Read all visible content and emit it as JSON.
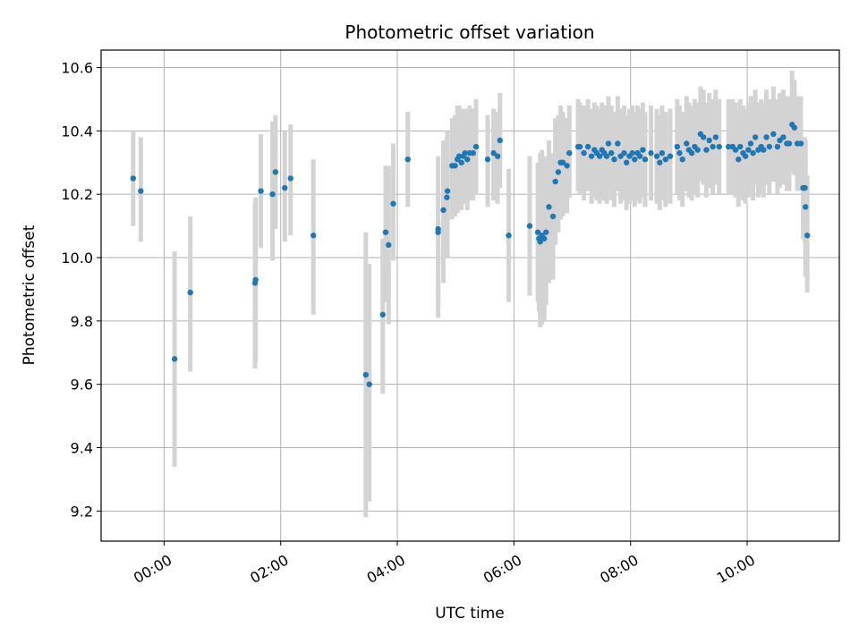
{
  "chart_data": {
    "type": "scatter",
    "title": "Photometric offset variation",
    "xlabel": "UTC time",
    "ylabel": "Photometric offset",
    "xlim_hours": [
      -1.08,
      11.58
    ],
    "ylim": [
      9.105,
      10.655
    ],
    "x_ticks": [
      {
        "label": "00:00",
        "hour": 0
      },
      {
        "label": "02:00",
        "hour": 2
      },
      {
        "label": "04:00",
        "hour": 4
      },
      {
        "label": "06:00",
        "hour": 6
      },
      {
        "label": "08:00",
        "hour": 8
      },
      {
        "label": "10:00",
        "hour": 10
      }
    ],
    "y_ticks": [
      {
        "label": "9.2",
        "value": 9.2
      },
      {
        "label": "9.4",
        "value": 9.4
      },
      {
        "label": "9.6",
        "value": 9.6
      },
      {
        "label": "9.8",
        "value": 9.8
      },
      {
        "label": "10.0",
        "value": 10.0
      },
      {
        "label": "10.2",
        "value": 10.2
      },
      {
        "label": "10.4",
        "value": 10.4
      },
      {
        "label": "10.6",
        "value": 10.6
      }
    ],
    "grid": true,
    "colors": {
      "points": "#1f77b4",
      "errorbars": "#d3d3d3",
      "grid": "#b0b0b0"
    },
    "points": [
      [
        -0.53,
        10.25,
        10.1,
        10.4
      ],
      [
        -0.4,
        10.21,
        10.05,
        10.38
      ],
      [
        0.18,
        9.68,
        9.34,
        10.02
      ],
      [
        0.45,
        9.89,
        9.64,
        10.13
      ],
      [
        1.57,
        9.93,
        9.67,
        10.19
      ],
      [
        1.56,
        9.92,
        9.65,
        10.17
      ],
      [
        1.66,
        10.21,
        10.03,
        10.39
      ],
      [
        1.86,
        10.2,
        9.99,
        10.43
      ],
      [
        1.91,
        10.27,
        10.09,
        10.45
      ],
      [
        2.07,
        10.22,
        10.05,
        10.4
      ],
      [
        2.17,
        10.25,
        10.07,
        10.42
      ],
      [
        2.56,
        10.07,
        9.82,
        10.31
      ],
      [
        3.46,
        9.63,
        9.18,
        10.08
      ],
      [
        3.52,
        9.6,
        9.23,
        9.98
      ],
      [
        3.75,
        9.82,
        9.57,
        10.06
      ],
      [
        3.8,
        10.08,
        9.86,
        10.29
      ],
      [
        3.85,
        10.04,
        9.79,
        10.29
      ],
      [
        3.93,
        10.17,
        9.99,
        10.36
      ],
      [
        4.18,
        10.31,
        10.16,
        10.46
      ],
      [
        4.7,
        10.09,
        9.81,
        10.32
      ],
      [
        4.7,
        10.08,
        9.85,
        10.3
      ],
      [
        4.79,
        10.15,
        9.92,
        10.37
      ],
      [
        4.86,
        10.21,
        10.0,
        10.4
      ],
      [
        4.85,
        10.19,
        10.01,
        10.38
      ],
      [
        4.94,
        10.29,
        10.12,
        10.44
      ],
      [
        4.99,
        10.29,
        10.13,
        10.45
      ],
      [
        5.03,
        10.31,
        10.14,
        10.48
      ],
      [
        5.06,
        10.32,
        10.16,
        10.48
      ],
      [
        5.1,
        10.3,
        10.15,
        10.47
      ],
      [
        5.13,
        10.32,
        10.17,
        10.47
      ],
      [
        5.16,
        10.33,
        10.18,
        10.47
      ],
      [
        5.2,
        10.31,
        10.15,
        10.46
      ],
      [
        5.24,
        10.33,
        10.18,
        10.48
      ],
      [
        5.3,
        10.33,
        10.18,
        10.47
      ],
      [
        5.35,
        10.35,
        10.2,
        10.5
      ],
      [
        5.55,
        10.31,
        10.16,
        10.45
      ],
      [
        5.65,
        10.33,
        10.18,
        10.47
      ],
      [
        5.72,
        10.32,
        10.17,
        10.46
      ],
      [
        5.76,
        10.37,
        10.22,
        10.52
      ],
      [
        5.91,
        10.07,
        9.86,
        10.28
      ],
      [
        6.27,
        10.1,
        9.88,
        10.32
      ],
      [
        6.41,
        10.08,
        9.86,
        10.3
      ],
      [
        6.43,
        10.06,
        9.83,
        10.28
      ],
      [
        6.45,
        10.05,
        9.78,
        10.33
      ],
      [
        6.48,
        10.07,
        9.79,
        10.34
      ],
      [
        6.52,
        10.06,
        9.8,
        10.32
      ],
      [
        6.55,
        10.08,
        9.85,
        10.3
      ],
      [
        6.6,
        10.16,
        9.92,
        10.37
      ],
      [
        6.67,
        10.13,
        9.93,
        10.33
      ],
      [
        6.71,
        10.24,
        10.04,
        10.44
      ],
      [
        6.76,
        10.27,
        10.08,
        10.45
      ],
      [
        6.8,
        10.3,
        10.12,
        10.48
      ],
      [
        6.84,
        10.3,
        10.13,
        10.46
      ],
      [
        6.91,
        10.29,
        10.14,
        10.44
      ],
      [
        6.95,
        10.33,
        10.19,
        10.48
      ],
      [
        7.1,
        10.35,
        10.21,
        10.5
      ],
      [
        7.13,
        10.35,
        10.2,
        10.49
      ],
      [
        7.2,
        10.33,
        10.18,
        10.48
      ],
      [
        7.27,
        10.35,
        10.21,
        10.5
      ],
      [
        7.33,
        10.32,
        10.17,
        10.47
      ],
      [
        7.38,
        10.34,
        10.19,
        10.49
      ],
      [
        7.42,
        10.33,
        10.18,
        10.48
      ],
      [
        7.47,
        10.32,
        10.17,
        10.47
      ],
      [
        7.51,
        10.34,
        10.19,
        10.49
      ],
      [
        7.55,
        10.33,
        10.18,
        10.48
      ],
      [
        7.59,
        10.32,
        10.17,
        10.47
      ],
      [
        7.62,
        10.36,
        10.21,
        10.51
      ],
      [
        7.67,
        10.33,
        10.18,
        10.48
      ],
      [
        7.72,
        10.31,
        10.16,
        10.46
      ],
      [
        7.78,
        10.36,
        10.21,
        10.51
      ],
      [
        7.83,
        10.32,
        10.17,
        10.47
      ],
      [
        7.89,
        10.33,
        10.18,
        10.48
      ],
      [
        7.93,
        10.3,
        10.15,
        10.45
      ],
      [
        7.98,
        10.32,
        10.17,
        10.47
      ],
      [
        8.03,
        10.33,
        10.18,
        10.48
      ],
      [
        8.07,
        10.31,
        10.16,
        10.46
      ],
      [
        8.12,
        10.33,
        10.18,
        10.48
      ],
      [
        8.16,
        10.32,
        10.17,
        10.47
      ],
      [
        8.21,
        10.34,
        10.19,
        10.49
      ],
      [
        8.25,
        10.31,
        10.16,
        10.46
      ],
      [
        8.35,
        10.33,
        10.18,
        10.48
      ],
      [
        8.45,
        10.32,
        10.17,
        10.47
      ],
      [
        8.5,
        10.3,
        10.15,
        10.45
      ],
      [
        8.54,
        10.33,
        10.18,
        10.48
      ],
      [
        8.6,
        10.31,
        10.16,
        10.46
      ],
      [
        8.68,
        10.32,
        10.17,
        10.47
      ],
      [
        8.8,
        10.35,
        10.2,
        10.5
      ],
      [
        8.84,
        10.33,
        10.18,
        10.48
      ],
      [
        8.89,
        10.31,
        10.16,
        10.46
      ],
      [
        8.96,
        10.36,
        10.21,
        10.51
      ],
      [
        9.0,
        10.34,
        10.19,
        10.49
      ],
      [
        9.05,
        10.33,
        10.18,
        10.48
      ],
      [
        9.1,
        10.35,
        10.2,
        10.5
      ],
      [
        9.15,
        10.34,
        10.19,
        10.49
      ],
      [
        9.2,
        10.39,
        10.24,
        10.54
      ],
      [
        9.25,
        10.38,
        10.23,
        10.53
      ],
      [
        9.3,
        10.34,
        10.19,
        10.49
      ],
      [
        9.35,
        10.37,
        10.22,
        10.52
      ],
      [
        9.41,
        10.35,
        10.2,
        10.5
      ],
      [
        9.46,
        10.38,
        10.23,
        10.53
      ],
      [
        9.52,
        10.35,
        10.2,
        10.5
      ],
      [
        9.68,
        10.35,
        10.2,
        10.5
      ],
      [
        9.75,
        10.35,
        10.2,
        10.5
      ],
      [
        9.8,
        10.34,
        10.19,
        10.49
      ],
      [
        9.85,
        10.31,
        10.16,
        10.46
      ],
      [
        9.88,
        10.35,
        10.2,
        10.5
      ],
      [
        9.93,
        10.33,
        10.18,
        10.48
      ],
      [
        9.97,
        10.32,
        10.17,
        10.47
      ],
      [
        10.02,
        10.34,
        10.19,
        10.49
      ],
      [
        10.06,
        10.36,
        10.21,
        10.51
      ],
      [
        10.1,
        10.33,
        10.18,
        10.48
      ],
      [
        10.14,
        10.38,
        10.23,
        10.53
      ],
      [
        10.19,
        10.34,
        10.19,
        10.49
      ],
      [
        10.24,
        10.35,
        10.2,
        10.5
      ],
      [
        10.28,
        10.34,
        10.19,
        10.49
      ],
      [
        10.33,
        10.38,
        10.23,
        10.53
      ],
      [
        10.38,
        10.35,
        10.2,
        10.5
      ],
      [
        10.45,
        10.39,
        10.24,
        10.54
      ],
      [
        10.52,
        10.35,
        10.2,
        10.5
      ],
      [
        10.56,
        10.37,
        10.22,
        10.52
      ],
      [
        10.62,
        10.38,
        10.23,
        10.53
      ],
      [
        10.68,
        10.36,
        10.21,
        10.51
      ],
      [
        10.72,
        10.36,
        10.21,
        10.51
      ],
      [
        10.77,
        10.42,
        10.27,
        10.59
      ],
      [
        10.81,
        10.41,
        10.26,
        10.56
      ],
      [
        10.86,
        10.36,
        10.21,
        10.51
      ],
      [
        10.92,
        10.36,
        10.21,
        10.51
      ],
      [
        10.96,
        10.22,
        10.06,
        10.37
      ],
      [
        10.99,
        10.22,
        10.05,
        10.38
      ],
      [
        11.0,
        10.16,
        9.94,
        10.37
      ],
      [
        11.03,
        10.07,
        9.89,
        10.26
      ]
    ]
  }
}
